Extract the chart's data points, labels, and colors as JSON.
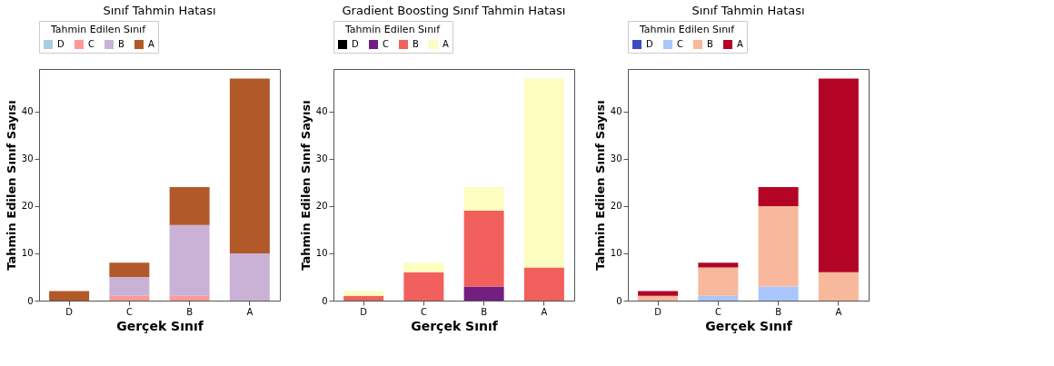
{
  "chart_data": [
    {
      "type": "bar",
      "stacked": true,
      "title": "Sınıf Tahmin Hatası",
      "legend_title": "Tahmin Edilen Sınıf",
      "legend": "top",
      "xlabel": "Gerçek Sınıf",
      "ylabel": "Tahmin Edilen Sınıf Sayısı",
      "categories": [
        "D",
        "C",
        "B",
        "A"
      ],
      "ylim": [
        0,
        49
      ],
      "yticks": [
        0,
        10,
        20,
        30,
        40
      ],
      "grid": false,
      "series": [
        {
          "name": "D",
          "color": "#a6cee3",
          "values": [
            null,
            null,
            null,
            null
          ]
        },
        {
          "name": "C",
          "color": "#fb9a99",
          "values": [
            null,
            1,
            1,
            null
          ]
        },
        {
          "name": "B",
          "color": "#cab2d6",
          "values": [
            null,
            4,
            15,
            10
          ]
        },
        {
          "name": "A",
          "color": "#b15928",
          "values": [
            2,
            3,
            8,
            37
          ]
        }
      ]
    },
    {
      "type": "bar",
      "stacked": true,
      "title": "Gradient Boosting Sınıf Tahmin Hatası",
      "legend_title": "Tahmin Edilen Sınıf",
      "legend": "top",
      "xlabel": "Gerçek Sınıf",
      "ylabel": "Tahmin Edilen Sınıf Sayısı",
      "categories": [
        "D",
        "C",
        "B",
        "A"
      ],
      "ylim": [
        0,
        49
      ],
      "yticks": [
        0,
        10,
        20,
        30,
        40
      ],
      "grid": false,
      "series": [
        {
          "name": "D",
          "color": "#000004",
          "values": [
            null,
            null,
            null,
            null
          ]
        },
        {
          "name": "C",
          "color": "#721f81",
          "values": [
            null,
            null,
            3,
            null
          ]
        },
        {
          "name": "B",
          "color": "#f1605d",
          "values": [
            1,
            6,
            16,
            7
          ]
        },
        {
          "name": "A",
          "color": "#fcfdbf",
          "values": [
            1,
            2,
            5,
            40
          ]
        }
      ]
    },
    {
      "type": "bar",
      "stacked": true,
      "title": "Sınıf Tahmin Hatası",
      "legend_title": "Tahmin Edilen Sınıf",
      "legend": "top",
      "xlabel": "Gerçek Sınıf",
      "ylabel": "Tahmin Edilen Sınıf Sayısı",
      "categories": [
        "D",
        "C",
        "B",
        "A"
      ],
      "ylim": [
        0,
        49
      ],
      "yticks": [
        0,
        10,
        20,
        30,
        40
      ],
      "grid": false,
      "series": [
        {
          "name": "D",
          "color": "#3b4cc0",
          "values": [
            null,
            null,
            null,
            null
          ]
        },
        {
          "name": "C",
          "color": "#aac7fd",
          "values": [
            null,
            1,
            3,
            null
          ]
        },
        {
          "name": "B",
          "color": "#f7b89c",
          "values": [
            1,
            6,
            17,
            6
          ]
        },
        {
          "name": "A",
          "color": "#b40426",
          "values": [
            1,
            1,
            4,
            41
          ]
        }
      ]
    }
  ]
}
